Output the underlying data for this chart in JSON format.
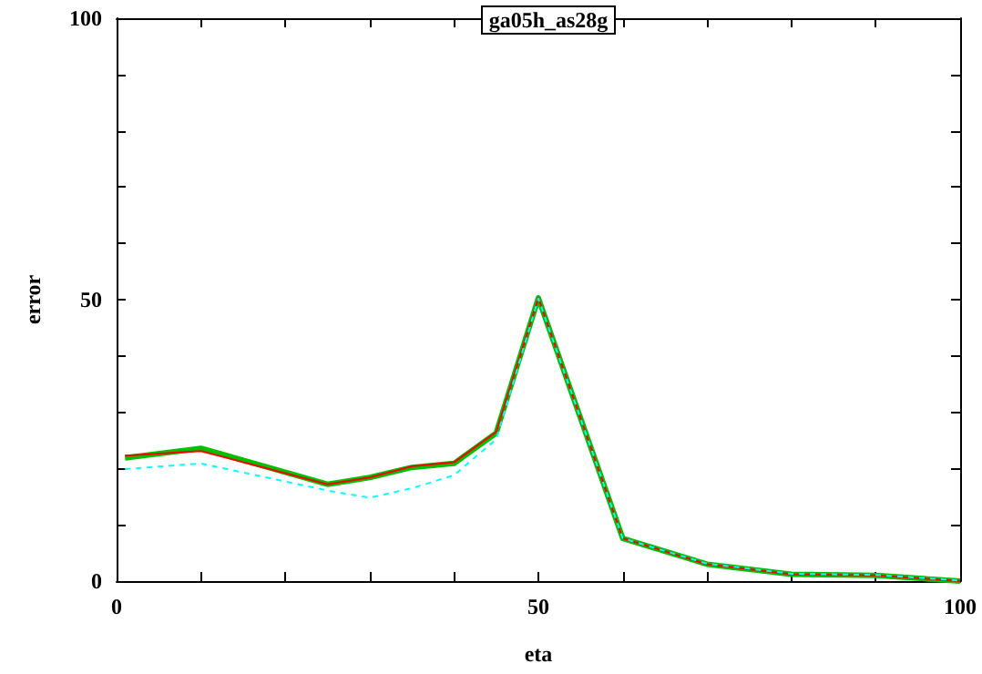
{
  "chart_data": {
    "type": "line",
    "title": "ga05h_as28g",
    "xlabel": "eta",
    "ylabel": "error",
    "x": [
      1,
      10,
      25,
      30,
      35,
      40,
      45,
      50,
      60,
      70,
      80,
      90,
      100
    ],
    "series": [
      {
        "color": "#00c000",
        "line_style": "solid",
        "values": [
          21.9,
          23.6,
          17.2,
          18.4,
          20.2,
          20.9,
          26.3,
          50.3,
          7.6,
          3.0,
          1.2,
          1.0,
          0
        ]
      },
      {
        "color": "#ff0000",
        "line_style": "solid",
        "values": [
          22.3,
          23.1,
          17.2,
          18.4,
          20.4,
          21.1,
          26.5,
          50.3,
          7.6,
          3.0,
          1.2,
          1.0,
          0
        ]
      },
      {
        "color": "#00ffff",
        "line_style": "dashed",
        "values": [
          19.9,
          20.9,
          16.1,
          14.8,
          16.5,
          18.8,
          25.2,
          50.2,
          7.6,
          3.1,
          1.3,
          1.1,
          0.1
        ]
      }
    ],
    "xlim": [
      0,
      100
    ],
    "ylim": [
      0,
      100
    ],
    "xticks": [
      0,
      {
        "value": 10,
        "label": null
      },
      {
        "value": 20,
        "label": null
      },
      {
        "value": 30,
        "label": null
      },
      {
        "value": 40,
        "label": null
      },
      50,
      {
        "value": 60,
        "label": null
      },
      {
        "value": 70,
        "label": null
      },
      {
        "value": 80,
        "label": null
      },
      {
        "value": 90,
        "label": null
      },
      100
    ],
    "yticks": [
      0,
      {
        "value": 10,
        "label": null
      },
      {
        "value": 20,
        "label": null
      },
      {
        "value": 30,
        "label": null
      },
      {
        "value": 40,
        "label": null
      },
      50,
      {
        "value": 60,
        "label": null
      },
      {
        "value": 70,
        "label": null
      },
      {
        "value": 80,
        "label": null
      },
      {
        "value": 90,
        "label": null
      },
      100
    ],
    "grid": false,
    "marker": "none"
  }
}
